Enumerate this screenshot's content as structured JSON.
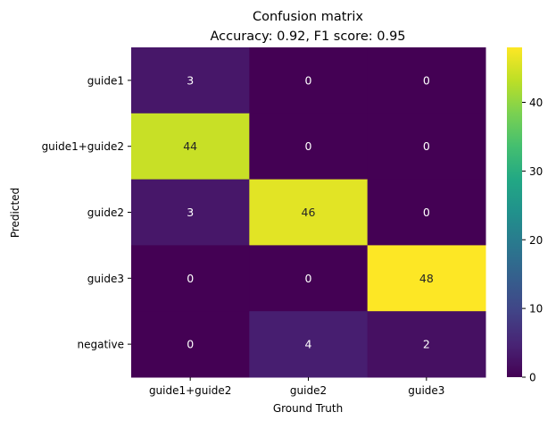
{
  "chart_data": {
    "type": "heatmap",
    "title": "Confusion matrix",
    "subtitle": "Accuracy: 0.92, F1 score: 0.95",
    "xlabel": "Ground Truth",
    "ylabel": "Predicted",
    "x_categories": [
      "guide1+guide2",
      "guide2",
      "guide3"
    ],
    "y_categories": [
      "guide1",
      "guide1+guide2",
      "guide2",
      "guide3",
      "negative"
    ],
    "values": [
      [
        3,
        0,
        0
      ],
      [
        44,
        0,
        0
      ],
      [
        3,
        46,
        0
      ],
      [
        0,
        0,
        48
      ],
      [
        0,
        4,
        2
      ]
    ],
    "colormap": "viridis",
    "colorbar": {
      "min": 0,
      "max": 48,
      "ticks": [
        0,
        10,
        20,
        30,
        40
      ]
    },
    "grid": false
  }
}
